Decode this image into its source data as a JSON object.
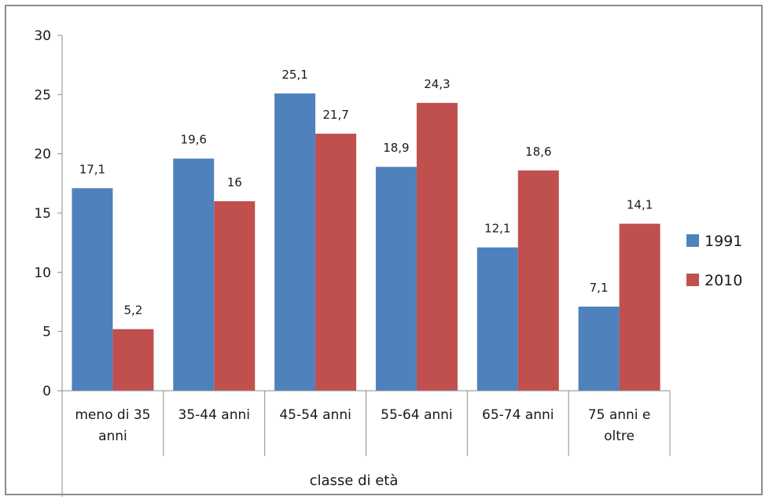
{
  "chart_data": {
    "type": "bar",
    "title": "",
    "xlabel": "classe di età",
    "ylabel": "",
    "ylim": [
      0,
      30
    ],
    "yticks": [
      0,
      5,
      10,
      15,
      20,
      25,
      30
    ],
    "grid": false,
    "legend": "right",
    "categories": [
      [
        "meno di 35",
        "anni"
      ],
      [
        "35-44 anni"
      ],
      [
        "45-54 anni"
      ],
      [
        "55-64 anni"
      ],
      [
        "65-74 anni"
      ],
      [
        "75 anni e",
        "oltre"
      ]
    ],
    "series": [
      {
        "name": "1991",
        "color": "#4f81bd",
        "values": [
          17.1,
          19.6,
          25.1,
          18.9,
          12.1,
          7.1
        ],
        "labels": [
          "17,1",
          "19,6",
          "25,1",
          "18,9",
          "12,1",
          "7,1"
        ]
      },
      {
        "name": "2010",
        "color": "#c0504d",
        "values": [
          5.2,
          16,
          21.7,
          24.3,
          18.6,
          14.1
        ],
        "labels": [
          "5,2",
          "16",
          "21,7",
          "24,3",
          "18,6",
          "14,1"
        ]
      }
    ]
  }
}
